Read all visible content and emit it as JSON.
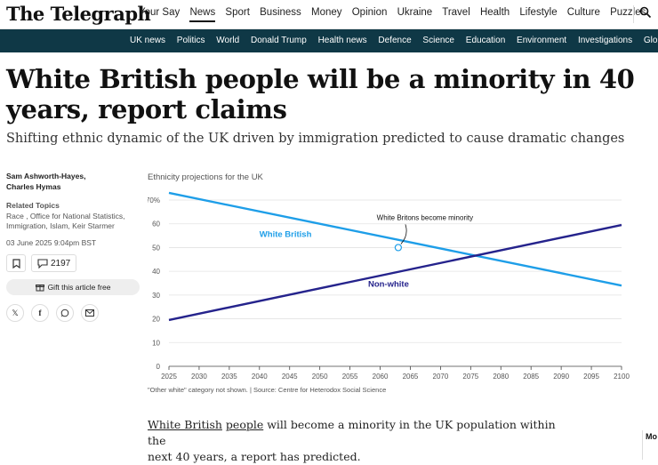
{
  "header": {
    "logo": "The Telegraph",
    "nav": [
      "Your Say",
      "News",
      "Sport",
      "Business",
      "Money",
      "Opinion",
      "Ukraine",
      "Travel",
      "Health",
      "Lifestyle",
      "Culture",
      "Puzzles"
    ],
    "active_nav": "News",
    "subnav": [
      "UK news",
      "Politics",
      "World",
      "Donald Trump",
      "Health news",
      "Defence",
      "Science",
      "Education",
      "Environment",
      "Investigations",
      "Global"
    ]
  },
  "article": {
    "headline": "White British people will be a minority in 40 years, report claims",
    "standfirst": "Shifting ethnic dynamic of the UK driven by immigration predicted to cause dramatic changes",
    "author_line1": "Sam Ashworth-Hayes,",
    "author_line2": "Charles Hymas",
    "related_title": "Related Topics",
    "related_list": "Race , Office for National Statistics, Immigration, Islam, Keir Starmer",
    "date": "03 June 2025 9:04pm BST",
    "comment_count": "2197",
    "gift_label": "Gift this article free",
    "lede_link1": "White British",
    "lede_link2": "people",
    "lede_rest1": " will become a minority in the UK population within the",
    "lede_rest2": "next 40 years, a report has predicted.",
    "more_label": "Mo"
  },
  "chart_data": {
    "type": "line",
    "title": "Ethnicity projections for the UK",
    "source": "\"Other white\" category not shown. | Source: Centre for Heterodox Social Science",
    "x": [
      2025,
      2100
    ],
    "xticks": [
      2025,
      2030,
      2035,
      2040,
      2045,
      2050,
      2055,
      2060,
      2065,
      2070,
      2075,
      2080,
      2085,
      2090,
      2095,
      2100
    ],
    "yticks": [
      "0",
      "10",
      "20",
      "30",
      "40",
      "50",
      "60",
      "70%"
    ],
    "ylim": [
      0,
      70
    ],
    "series": [
      {
        "name": "White British",
        "x": [
          2025,
          2100
        ],
        "values": [
          73,
          34
        ],
        "color": "#1e9ee8"
      },
      {
        "name": "Non-white",
        "x": [
          2025,
          2100
        ],
        "values": [
          19.5,
          59.5
        ],
        "color": "#25238c"
      }
    ],
    "annotation": {
      "text": "White Britons become minority",
      "x": 2063,
      "y": 50
    }
  }
}
